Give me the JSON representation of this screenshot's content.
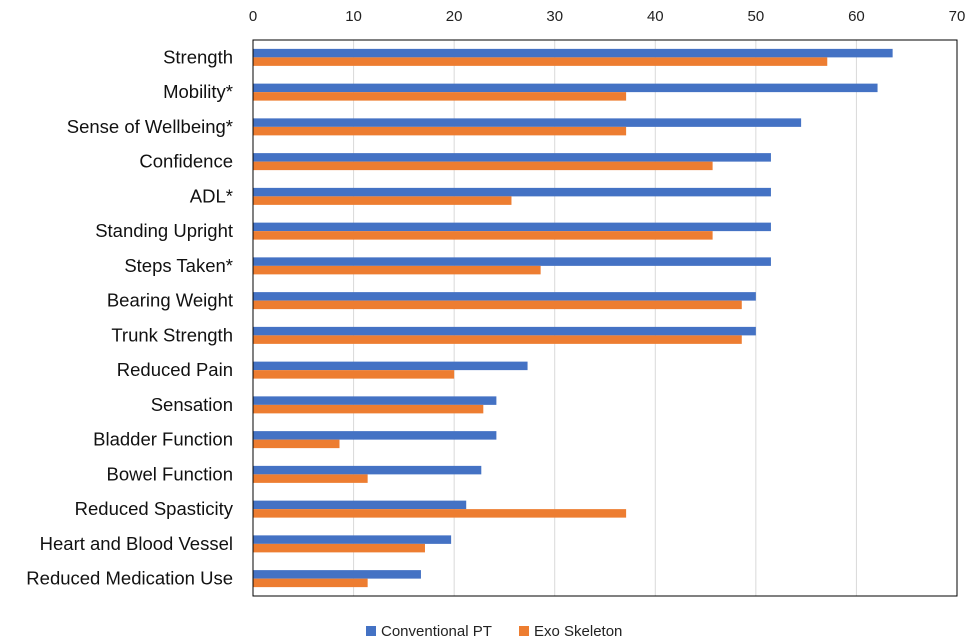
{
  "chart_data": {
    "type": "bar",
    "orientation": "horizontal",
    "categories": [
      "Strength",
      "Mobility*",
      "Sense of Wellbeing*",
      "Confidence",
      "ADL*",
      "Standing Upright",
      "Steps Taken*",
      "Bearing Weight",
      "Trunk Strength",
      "Reduced Pain",
      "Sensation",
      "Bladder Function",
      "Bowel Function",
      "Reduced Spasticity",
      "Heart and Blood Vessel",
      "Reduced Medication Use"
    ],
    "series": [
      {
        "name": "Conventional PT",
        "color": "#4472C4",
        "values": [
          63.6,
          62.1,
          54.5,
          51.5,
          51.5,
          51.5,
          51.5,
          50.0,
          50.0,
          27.3,
          24.2,
          24.2,
          22.7,
          21.2,
          19.7,
          16.7
        ]
      },
      {
        "name": "Exo Skeleton",
        "color": "#ED7D31",
        "values": [
          57.1,
          37.1,
          37.1,
          45.7,
          25.7,
          45.7,
          28.6,
          48.6,
          48.6,
          20.0,
          22.9,
          8.6,
          11.4,
          37.1,
          17.1,
          11.4
        ]
      }
    ],
    "xlim": [
      0,
      70
    ],
    "xticks": [
      0,
      10,
      20,
      30,
      40,
      50,
      60,
      70
    ],
    "x_axis_position": "top",
    "grid": true,
    "legend_position": "bottom-center",
    "title": "",
    "xlabel": "",
    "ylabel": ""
  }
}
